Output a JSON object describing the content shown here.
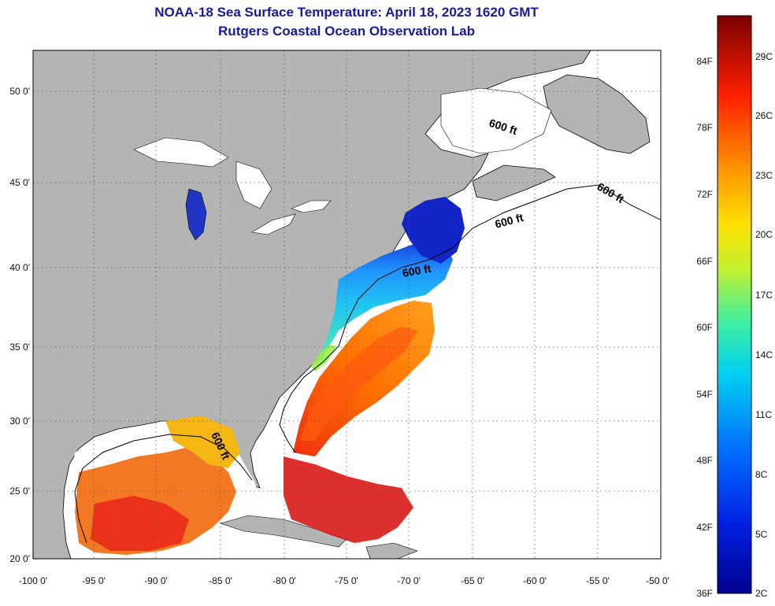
{
  "title": "NOAA-18 Sea Surface Temperature:  April 18, 2023 1620 GMT",
  "subtitle": "Rutgers Coastal Ocean Observation Lab",
  "lat_labels": [
    "50 0'",
    "45 0'",
    "40 0'",
    "35 0'",
    "30 0'",
    "25 0'",
    "20 0'"
  ],
  "lon_labels": [
    "-100 0'",
    "-95 0'",
    "-90 0'",
    "-85 0'",
    "-80 0'",
    "-75 0'",
    "-70 0'",
    "-65 0'",
    "-60 0'",
    "-55 0'",
    "-50 0'"
  ],
  "contour_label": "600 ft",
  "colorbar": {
    "fahrenheit_labels": [
      "84F",
      "78F",
      "72F",
      "66F",
      "60F",
      "54F",
      "48F",
      "42F",
      "36F"
    ],
    "celsius_labels": [
      "29C",
      "26C",
      "23C",
      "20C",
      "17C",
      "14C",
      "11C",
      "8C",
      "5C",
      "2C"
    ]
  },
  "colors": {
    "land": "#b4b4b4",
    "no_data_water": "#ffffff",
    "title_color": "#1a1a9a",
    "grid": "#555555"
  }
}
